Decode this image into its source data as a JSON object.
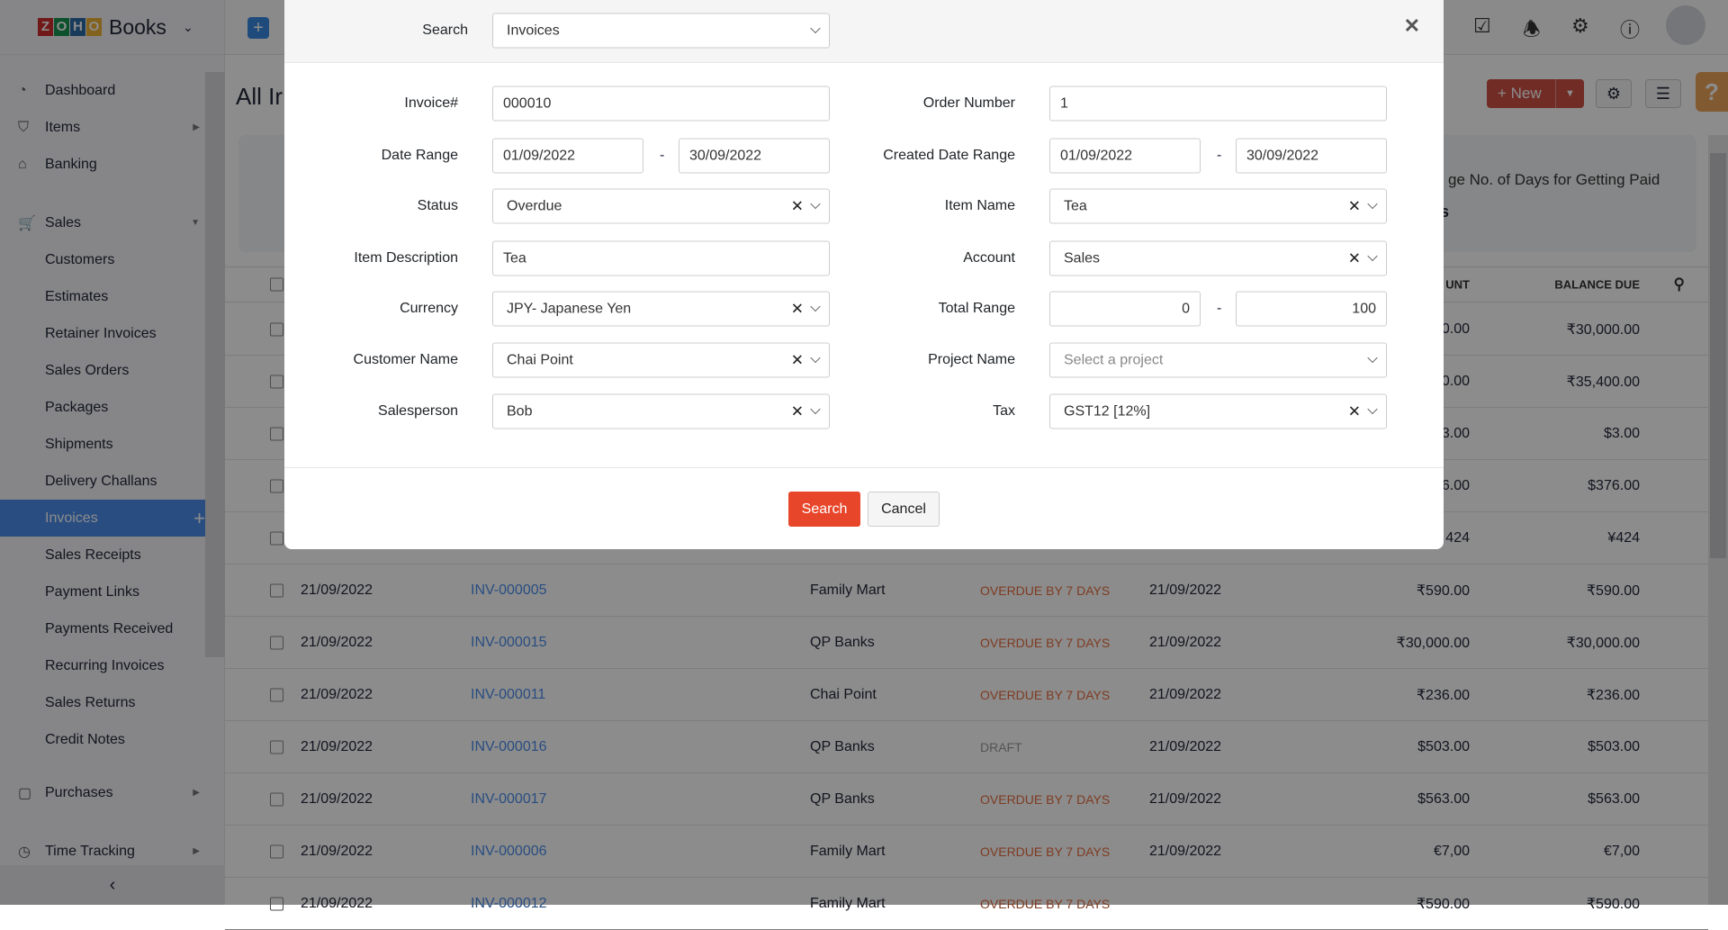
{
  "app": {
    "logo_text": "ZOHO",
    "product": "Books"
  },
  "sidebar": {
    "items": [
      {
        "label": "Dashboard",
        "icon": "dashboard-icon"
      },
      {
        "label": "Items",
        "icon": "basket-icon",
        "arrow": true
      },
      {
        "label": "Banking",
        "icon": "bank-icon"
      },
      {
        "label": "Sales",
        "icon": "cart-icon",
        "arrow": true
      },
      {
        "label": "Customers",
        "sub": true
      },
      {
        "label": "Estimates",
        "sub": true
      },
      {
        "label": "Retainer Invoices",
        "sub": true
      },
      {
        "label": "Sales Orders",
        "sub": true
      },
      {
        "label": "Packages",
        "sub": true
      },
      {
        "label": "Shipments",
        "sub": true
      },
      {
        "label": "Delivery Challans",
        "sub": true
      },
      {
        "label": "Invoices",
        "sub": true,
        "active": true
      },
      {
        "label": "Sales Receipts",
        "sub": true
      },
      {
        "label": "Payment Links",
        "sub": true
      },
      {
        "label": "Payments Received",
        "sub": true
      },
      {
        "label": "Recurring Invoices",
        "sub": true
      },
      {
        "label": "Sales Returns",
        "sub": true
      },
      {
        "label": "Credit Notes",
        "sub": true
      },
      {
        "label": "Purchases",
        "icon": "bag-icon",
        "arrow": true
      },
      {
        "label": "Time Tracking",
        "icon": "clock-icon",
        "arrow": true
      }
    ]
  },
  "page": {
    "title": "All Ir",
    "new_label": "New",
    "card_title": "ge No. of Days for Getting Paid",
    "card_value": "s"
  },
  "table": {
    "headers": {
      "amount": "UNT",
      "balance": "BALANCE DUE"
    },
    "rows": [
      {
        "date": "",
        "invoice": "",
        "customer": "",
        "status": "",
        "status_type": "",
        "due": "",
        "amount": "0.00",
        "balance": "₹30,000.00"
      },
      {
        "date": "",
        "invoice": "",
        "customer": "",
        "status": "",
        "status_type": "",
        "due": "",
        "amount": "0.00",
        "balance": "₹35,400.00"
      },
      {
        "date": "",
        "invoice": "",
        "customer": "",
        "status": "",
        "status_type": "",
        "due": "",
        "amount": "3.00",
        "balance": "$3.00"
      },
      {
        "date": "",
        "invoice": "",
        "customer": "",
        "status": "",
        "status_type": "",
        "due": "",
        "amount": "6.00",
        "balance": "$376.00"
      },
      {
        "date": "",
        "invoice": "",
        "customer": "",
        "status": "",
        "status_type": "",
        "due": "",
        "amount": "424",
        "balance": "¥424"
      },
      {
        "date": "21/09/2022",
        "invoice": "INV-000005",
        "customer": "Family Mart",
        "status": "OVERDUE BY 7 DAYS",
        "status_type": "overdue",
        "due": "21/09/2022",
        "amount": "₹590.00",
        "balance": "₹590.00"
      },
      {
        "date": "21/09/2022",
        "invoice": "INV-000015",
        "customer": "QP Banks",
        "status": "OVERDUE BY 7 DAYS",
        "status_type": "overdue",
        "due": "21/09/2022",
        "amount": "₹30,000.00",
        "balance": "₹30,000.00"
      },
      {
        "date": "21/09/2022",
        "invoice": "INV-000011",
        "customer": "Chai Point",
        "status": "OVERDUE BY 7 DAYS",
        "status_type": "overdue",
        "due": "21/09/2022",
        "amount": "₹236.00",
        "balance": "₹236.00"
      },
      {
        "date": "21/09/2022",
        "invoice": "INV-000016",
        "customer": "QP Banks",
        "status": "DRAFT",
        "status_type": "draft",
        "due": "21/09/2022",
        "amount": "$503.00",
        "balance": "$503.00"
      },
      {
        "date": "21/09/2022",
        "invoice": "INV-000017",
        "customer": "QP Banks",
        "status": "OVERDUE BY 7 DAYS",
        "status_type": "overdue",
        "due": "21/09/2022",
        "amount": "$563.00",
        "balance": "$563.00"
      },
      {
        "date": "21/09/2022",
        "invoice": "INV-000006",
        "customer": "Family Mart",
        "status": "OVERDUE BY 7 DAYS",
        "status_type": "overdue",
        "due": "21/09/2022",
        "amount": "€7,00",
        "balance": "€7,00"
      },
      {
        "date": "21/09/2022",
        "invoice": "INV-000012",
        "customer": "Family Mart",
        "status": "OVERDUE BY 7 DAYS",
        "status_type": "overdue",
        "due": "",
        "amount": "₹590.00",
        "balance": "₹590.00"
      }
    ]
  },
  "modal": {
    "search_label": "Search",
    "search_value": "Invoices",
    "fields": {
      "invoice_label": "Invoice#",
      "invoice_value": "000010",
      "date_range_label": "Date Range",
      "date_from": "01/09/2022",
      "date_to": "30/09/2022",
      "status_label": "Status",
      "status_value": "Overdue",
      "item_desc_label": "Item Description",
      "item_desc_value": "Tea",
      "currency_label": "Currency",
      "currency_value": "JPY- Japanese Yen",
      "customer_label": "Customer Name",
      "customer_value": "Chai Point",
      "salesperson_label": "Salesperson",
      "salesperson_value": "Bob",
      "order_label": "Order Number",
      "order_value": "1",
      "created_range_label": "Created Date Range",
      "created_from": "01/09/2022",
      "created_to": "30/09/2022",
      "item_name_label": "Item Name",
      "item_name_value": "Tea",
      "account_label": "Account",
      "account_value": "Sales",
      "total_range_label": "Total Range",
      "total_from": "0",
      "total_to": "100",
      "project_label": "Project Name",
      "project_placeholder": "Select a project",
      "tax_label": "Tax",
      "tax_value": "GST12 [12%]"
    },
    "dash": "-",
    "search_button": "Search",
    "cancel_button": "Cancel"
  },
  "colors": {
    "accent": "#408dfb",
    "primary_button": "#e8462b",
    "overdue": "#f76831"
  }
}
